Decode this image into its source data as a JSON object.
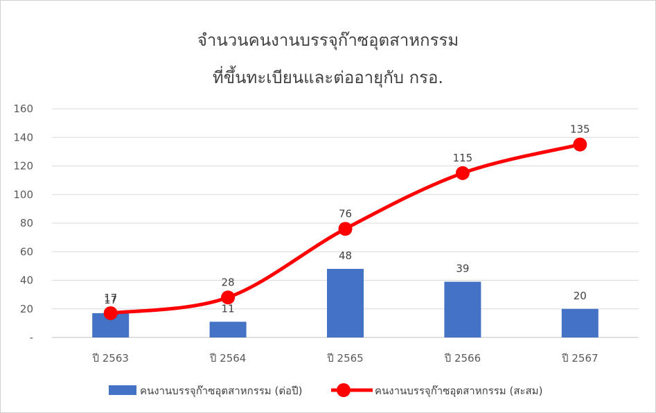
{
  "chart_data": {
    "type": "bar+line",
    "title_line1": "จำนวนคนงานบรรจุก๊าซอุตสาหกรรม",
    "title_line2": "ที่ขึ้นทะเบียนและต่ออายุกับ  กรอ.",
    "categories": [
      "ปี 2563",
      "ปี 2564",
      "ปี 2565",
      "ปี 2566",
      "ปี 2567"
    ],
    "y_ticks": [
      "-",
      "20",
      "40",
      "60",
      "80",
      "100",
      "120",
      "140",
      "160"
    ],
    "ylim": [
      0,
      160
    ],
    "grid": true,
    "legend_position": "bottom",
    "series": [
      {
        "name": "คนงานบรรจุก๊าซอุตสาหกรรม (ต่อปี)",
        "type": "bar",
        "color": "#4472C4",
        "values": [
          17,
          11,
          48,
          39,
          20
        ]
      },
      {
        "name": "คนงานบรรจุก๊าซอุตสาหกรรม (สะสม)",
        "type": "line",
        "color": "#FF0000",
        "values": [
          17,
          28,
          76,
          115,
          135
        ]
      }
    ]
  }
}
